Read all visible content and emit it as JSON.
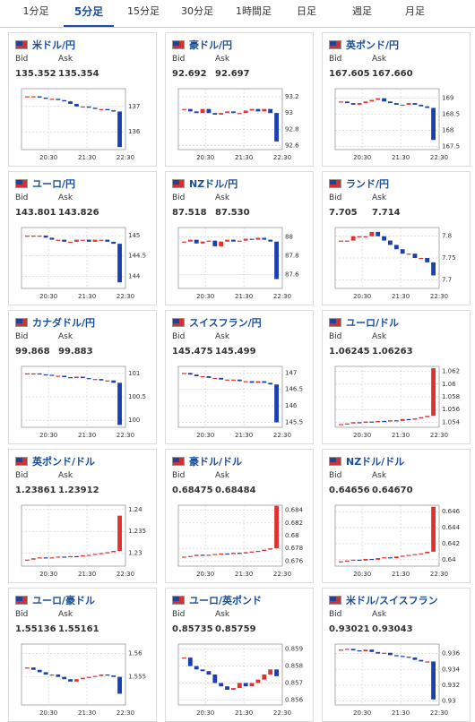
{
  "tabs": [
    {
      "label": "1分足",
      "active": false
    },
    {
      "label": "5分足",
      "active": true
    },
    {
      "label": "15分足",
      "active": false
    },
    {
      "label": "30分足",
      "active": false
    },
    {
      "label": "1時間足",
      "active": false
    },
    {
      "label": "日足",
      "active": false
    },
    {
      "label": "週足",
      "active": false
    },
    {
      "label": "月足",
      "active": false
    }
  ],
  "labels": {
    "bid": "Bid",
    "ask": "Ask"
  },
  "xticks": [
    "20:30",
    "21:30",
    "22:30"
  ],
  "cards": [
    {
      "pair": "米ドル/円",
      "bid": "135.352",
      "ask": "135.354",
      "ylim": [
        135.3,
        137.7
      ],
      "yticks": [
        137,
        136
      ],
      "closes": [
        137.4,
        137.4,
        137.35,
        137.3,
        137.3,
        137.25,
        137.2,
        137.1,
        137.0,
        137.0,
        136.95,
        136.9,
        136.9,
        136.85,
        136.8,
        135.4
      ]
    },
    {
      "pair": "豪ドル/円",
      "bid": "92.692",
      "ask": "92.697",
      "ylim": [
        92.55,
        93.3
      ],
      "yticks": [
        93.2,
        93,
        92.8,
        92.6
      ],
      "closes": [
        93.05,
        93.02,
        93.0,
        93.05,
        93.0,
        92.98,
        93.0,
        93.02,
        93.0,
        93.0,
        93.03,
        93.05,
        93.02,
        93.05,
        93.0,
        92.65
      ]
    },
    {
      "pair": "英ポンド/円",
      "bid": "167.605",
      "ask": "167.660",
      "ylim": [
        167.4,
        169.3
      ],
      "yticks": [
        169,
        168.5,
        168,
        167.5
      ],
      "closes": [
        168.9,
        168.85,
        168.8,
        168.85,
        168.9,
        168.95,
        169.0,
        168.9,
        168.85,
        168.8,
        168.8,
        168.85,
        168.8,
        168.75,
        168.7,
        167.7
      ]
    },
    {
      "pair": "ユーロ/円",
      "bid": "143.801",
      "ask": "143.826",
      "ylim": [
        143.7,
        145.2
      ],
      "yticks": [
        145,
        144.5,
        144
      ],
      "closes": [
        145.0,
        145.0,
        145.0,
        144.95,
        144.9,
        144.9,
        144.85,
        144.85,
        144.9,
        144.9,
        144.85,
        144.9,
        144.9,
        144.85,
        144.8,
        143.85
      ]
    },
    {
      "pair": "NZドル/円",
      "bid": "87.518",
      "ask": "87.530",
      "ylim": [
        87.45,
        88.1
      ],
      "yticks": [
        88,
        87.8,
        87.6
      ],
      "closes": [
        87.95,
        87.97,
        87.93,
        87.95,
        87.96,
        87.9,
        87.95,
        87.97,
        87.95,
        87.96,
        87.98,
        87.97,
        87.99,
        87.97,
        87.95,
        87.55
      ]
    },
    {
      "pair": "ランド/円",
      "bid": "7.705",
      "ask": "7.714",
      "ylim": [
        7.68,
        7.82
      ],
      "yticks": [
        7.8,
        7.75,
        7.7
      ],
      "closes": [
        7.79,
        7.79,
        7.8,
        7.8,
        7.8,
        7.81,
        7.8,
        7.79,
        7.78,
        7.77,
        7.76,
        7.76,
        7.75,
        7.75,
        7.74,
        7.71
      ]
    },
    {
      "pair": "カナダドル/円",
      "bid": "99.868",
      "ask": "99.883",
      "ylim": [
        99.85,
        101.15
      ],
      "yticks": [
        101,
        100.5,
        100
      ],
      "closes": [
        101.0,
        101.0,
        100.98,
        100.97,
        100.95,
        100.95,
        100.92,
        100.9,
        100.93,
        100.9,
        100.88,
        100.88,
        100.85,
        100.85,
        100.8,
        99.9
      ]
    },
    {
      "pair": "スイスフラン/円",
      "bid": "145.475",
      "ask": "145.499",
      "ylim": [
        145.35,
        147.2
      ],
      "yticks": [
        147,
        146.5,
        146,
        145.5
      ],
      "closes": [
        147.0,
        146.95,
        146.9,
        146.9,
        146.85,
        146.85,
        146.8,
        146.8,
        146.8,
        146.75,
        146.75,
        146.7,
        146.75,
        146.7,
        146.65,
        145.5
      ]
    },
    {
      "pair": "ユーロ/ドル",
      "bid": "1.06245",
      "ask": "1.06263",
      "ylim": [
        1.0532,
        1.0628
      ],
      "yticks": [
        1.062,
        1.06,
        1.058,
        1.056,
        1.054
      ],
      "closes": [
        1.0537,
        1.0538,
        1.054,
        1.0539,
        1.0541,
        1.054,
        1.0542,
        1.0541,
        1.0543,
        1.0542,
        1.0545,
        1.0544,
        1.0546,
        1.0548,
        1.055,
        1.0625
      ]
    },
    {
      "pair": "英ポンド/ドル",
      "bid": "1.23861",
      "ask": "1.23912",
      "ylim": [
        1.227,
        1.241
      ],
      "yticks": [
        1.24,
        1.235,
        1.23
      ],
      "closes": [
        1.2285,
        1.2288,
        1.229,
        1.2288,
        1.229,
        1.2292,
        1.2291,
        1.2293,
        1.2292,
        1.2295,
        1.2296,
        1.2298,
        1.23,
        1.2302,
        1.2305,
        1.2386
      ]
    },
    {
      "pair": "豪ドル/ドル",
      "bid": "0.68475",
      "ask": "0.68484",
      "ylim": [
        0.6752,
        0.6848
      ],
      "yticks": [
        0.684,
        0.682,
        0.68,
        0.678,
        0.676
      ],
      "closes": [
        0.6767,
        0.6768,
        0.677,
        0.6769,
        0.677,
        0.6771,
        0.6772,
        0.6771,
        0.6773,
        0.6772,
        0.6774,
        0.6775,
        0.6776,
        0.6778,
        0.678,
        0.6847
      ]
    },
    {
      "pair": "NZドル/ドル",
      "bid": "0.64656",
      "ask": "0.64670",
      "ylim": [
        0.6392,
        0.6468
      ],
      "yticks": [
        0.646,
        0.644,
        0.642,
        0.64
      ],
      "closes": [
        0.6398,
        0.6399,
        0.64,
        0.6399,
        0.6401,
        0.64,
        0.6402,
        0.6403,
        0.6402,
        0.6404,
        0.6405,
        0.6406,
        0.6407,
        0.6408,
        0.641,
        0.6466
      ]
    },
    {
      "pair": "ユーロ/豪ドル",
      "bid": "1.55136",
      "ask": "1.55161",
      "ylim": [
        1.549,
        1.562
      ],
      "yticks": [
        1.56,
        1.555
      ],
      "closes": [
        1.557,
        1.5565,
        1.556,
        1.5555,
        1.5555,
        1.555,
        1.5545,
        1.554,
        1.5545,
        1.5548,
        1.555,
        1.5552,
        1.5555,
        1.5553,
        1.555,
        1.5514
      ]
    },
    {
      "pair": "ユーロ/英ポンド",
      "bid": "0.85735",
      "ask": "0.85759",
      "ylim": [
        0.8557,
        0.8593
      ],
      "yticks": [
        0.859,
        0.858,
        0.857,
        0.856
      ],
      "closes": [
        0.8585,
        0.858,
        0.8578,
        0.8577,
        0.8575,
        0.857,
        0.8568,
        0.8566,
        0.8567,
        0.857,
        0.8568,
        0.857,
        0.8572,
        0.8575,
        0.8578,
        0.8574
      ]
    },
    {
      "pair": "米ドル/スイスフラン",
      "bid": "0.93021",
      "ask": "0.93043",
      "ylim": [
        0.9295,
        0.9372
      ],
      "yticks": [
        0.936,
        0.934,
        0.932,
        0.93
      ],
      "closes": [
        0.9365,
        0.9366,
        0.9364,
        0.9363,
        0.9365,
        0.9362,
        0.936,
        0.9361,
        0.9358,
        0.9357,
        0.9356,
        0.9355,
        0.9352,
        0.935,
        0.935,
        0.9302
      ]
    }
  ]
}
